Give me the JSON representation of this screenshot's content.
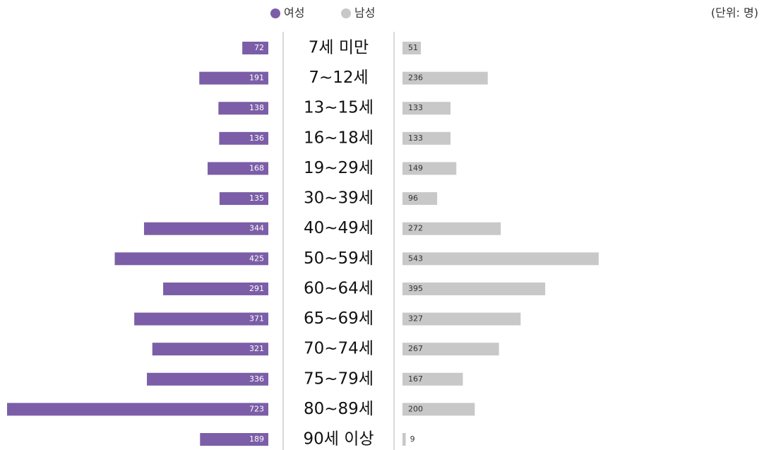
{
  "chart_data": {
    "type": "butterfly",
    "unit_label": "(단위: 명)",
    "categories": [
      "7세 미만",
      "7~12세",
      "13~15세",
      "16~18세",
      "19~29세",
      "30~39세",
      "40~49세",
      "50~59세",
      "60~64세",
      "65~69세",
      "70~74세",
      "75~79세",
      "80~89세",
      "90세 이상"
    ],
    "series": [
      {
        "name": "여성",
        "color": "#7b5ea7",
        "values": [
          72,
          191,
          138,
          136,
          168,
          135,
          344,
          425,
          291,
          371,
          321,
          336,
          723,
          189
        ]
      },
      {
        "name": "남성",
        "color": "#c8c8c8",
        "values": [
          51,
          236,
          133,
          133,
          149,
          96,
          272,
          543,
          395,
          327,
          267,
          167,
          200,
          9
        ]
      }
    ],
    "legend": "top"
  }
}
